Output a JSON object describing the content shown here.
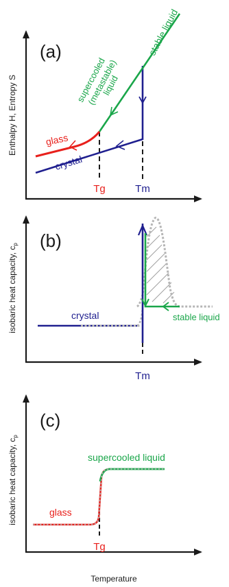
{
  "colors": {
    "axis": "#1a1a1a",
    "glass": "#e8201c",
    "liquid": "#1aa64a",
    "crystal": "#1f1f8f",
    "hatch": "#a0a0a0"
  },
  "panel_a": {
    "label": "(a)",
    "ylabel": "Enthalpy H, Entropy S",
    "tick_tg": "Tg",
    "tick_tm": "Tm",
    "label_glass": "glass",
    "label_crystal": "crystal",
    "label_supercooled_1": "supercooled",
    "label_supercooled_2": "(metastable)",
    "label_supercooled_3": "liquid",
    "label_stable": "stable liquid"
  },
  "panel_b": {
    "label": "(b)",
    "ylabel": "isobaric heat capacity, c",
    "ylabel_sub": "p",
    "tick_tm": "Tm",
    "label_crystal": "crystal",
    "label_stable": "stable liquid"
  },
  "panel_c": {
    "label": "(c)",
    "ylabel": "isobaric heat capacity, c",
    "ylabel_sub": "p",
    "tick_tg": "Tg",
    "label_glass": "glass",
    "label_supercooled": "supercooled liquid",
    "xlabel": "Temperature"
  }
}
